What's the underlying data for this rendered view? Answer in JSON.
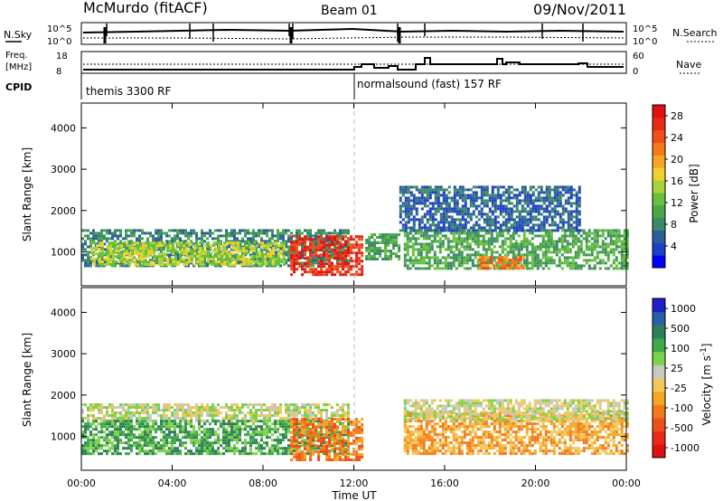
{
  "header": {
    "station": "McMurdo (fitACF)",
    "beam": "Beam 01",
    "date": "09/Nov/2011"
  },
  "summary_panels": {
    "nsky": {
      "label": "N.Sky",
      "ticks": [
        "10^5",
        "10^0"
      ]
    },
    "nsearch": {
      "label": "N.Search",
      "ticks": [
        "10^5",
        "10^0"
      ]
    },
    "freq": {
      "label_line1": "Freq.",
      "label_line2": "[MHz]",
      "ticks": [
        "18",
        "8"
      ]
    },
    "nave": {
      "label": "Nave",
      "ticks": [
        "60",
        "0"
      ]
    },
    "cpid": {
      "label": "CPID",
      "modes": [
        {
          "name": "themis 3300 RF",
          "start_hour": 0
        },
        {
          "name": "normalsound (fast) 157 RF",
          "start_hour": 12
        }
      ]
    }
  },
  "chart_data": [
    {
      "type": "heatmap",
      "name": "power",
      "ylabel": "Slant Range [km]",
      "xlabel": "Time UT",
      "x_ticks": [
        "00:00",
        "04:00",
        "08:00",
        "12:00",
        "16:00",
        "20:00",
        "00:00"
      ],
      "xlim_hours": [
        0,
        24
      ],
      "y_ticks": [
        1000,
        2000,
        3000,
        4000
      ],
      "ylim": [
        180,
        4600
      ],
      "colorbar": {
        "label": "Power [dB]",
        "ticks": [
          4,
          8,
          12,
          16,
          20,
          24,
          28
        ],
        "range": [
          0,
          30
        ],
        "colors": [
          "#0000ff",
          "#1e3fc8",
          "#2a5f9a",
          "#3b8a66",
          "#4aa648",
          "#66c23c",
          "#a8d43a",
          "#f2d02e",
          "#f6a623",
          "#f57a1c",
          "#f05018",
          "#e82a14",
          "#e01010"
        ]
      },
      "regions": [
        {
          "t": [
            0.0,
            11.8
          ],
          "range_km": [
            650,
            1550
          ],
          "level_db": 8
        },
        {
          "t": [
            0.4,
            8.9
          ],
          "range_km": [
            700,
            1250
          ],
          "level_db": 16
        },
        {
          "t": [
            9.2,
            12.4
          ],
          "range_km": [
            450,
            1400
          ],
          "level_db": 27
        },
        {
          "t": [
            12.5,
            14.0
          ],
          "range_km": [
            800,
            1450
          ],
          "level_db": 11
        },
        {
          "t": [
            14.2,
            24.0
          ],
          "range_km": [
            600,
            1550
          ],
          "level_db": 10
        },
        {
          "t": [
            14.0,
            22.0
          ],
          "range_km": [
            1500,
            2600
          ],
          "level_db": 6
        },
        {
          "t": [
            17.5,
            19.5
          ],
          "range_km": [
            580,
            900
          ],
          "level_db": 22
        }
      ]
    },
    {
      "type": "heatmap",
      "name": "velocity",
      "ylabel": "Slant Range [km]",
      "xlabel": "Time UT",
      "x_ticks": [
        "00:00",
        "04:00",
        "08:00",
        "12:00",
        "16:00",
        "20:00",
        "00:00"
      ],
      "xlim_hours": [
        0,
        24
      ],
      "y_ticks": [
        1000,
        2000,
        3000,
        4000
      ],
      "ylim": [
        180,
        4600
      ],
      "colorbar": {
        "label": "Velocity [m s^-1]",
        "ticks": [
          "1000",
          "500",
          "100",
          "25",
          "-25",
          "-100",
          "-500",
          "-1000"
        ],
        "colors": [
          "#2020c8",
          "#2a5fa6",
          "#2e7f5a",
          "#3ea84a",
          "#7cd24a",
          "#c8c8c0",
          "#f2c85a",
          "#f5a623",
          "#f27a1c",
          "#ee5018",
          "#e82a14",
          "#e01010"
        ]
      },
      "regions": [
        {
          "t": [
            0.0,
            11.8
          ],
          "range_km": [
            1400,
            1800
          ],
          "level": 0
        },
        {
          "t": [
            0.0,
            11.8
          ],
          "range_km": [
            600,
            1400
          ],
          "level": 120
        },
        {
          "t": [
            9.2,
            12.4
          ],
          "range_km": [
            450,
            1450
          ],
          "level": -150
        },
        {
          "t": [
            14.2,
            24.0
          ],
          "range_km": [
            600,
            1600
          ],
          "level": -90
        },
        {
          "t": [
            14.2,
            24.0
          ],
          "range_km": [
            1400,
            1900
          ],
          "level": 0
        }
      ]
    }
  ]
}
